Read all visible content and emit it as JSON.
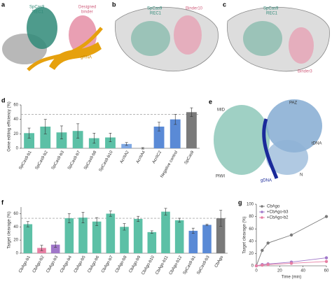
{
  "panel_labels": [
    "a",
    "b",
    "c",
    "d",
    "e",
    "f",
    "g"
  ],
  "structures": {
    "a": {
      "protein": [
        "SpCas9",
        "REC1"
      ],
      "binder": [
        "Designed",
        "binder"
      ],
      "rna": "gRNA"
    },
    "b": {
      "protein": [
        "SpCas9",
        "REC1"
      ],
      "binder": "Binder10"
    },
    "c": {
      "protein": [
        "SpCas9",
        "REC1"
      ],
      "binder": "Binder3"
    },
    "e": {
      "domains": [
        "MID",
        "PAZ",
        "tDNA",
        "PIWI",
        "gDNA",
        "N"
      ]
    }
  },
  "chart_data": [
    {
      "type": "bar",
      "y_label": "Gene editing efficiency (%)",
      "categories": [
        "SpCas9-b1",
        "SpCas9-b2",
        "SpCas9-b3",
        "SpCas9-b7",
        "SpCas9-b8",
        "SpCas9-b10",
        "AcrIIA2",
        "AcrIIA4",
        "AcrIIC2",
        "Negative control",
        "SpCas9"
      ],
      "values": [
        21,
        30,
        22,
        24,
        14,
        15,
        6,
        0,
        30,
        40,
        50
      ],
      "errors": [
        7,
        10,
        9,
        10,
        7,
        6,
        2,
        1,
        6,
        7,
        6
      ],
      "colors": [
        "#5cc0a6",
        "#5cc0a6",
        "#5cc0a6",
        "#5cc0a6",
        "#5cc0a6",
        "#5cc0a6",
        "#7fa8e3",
        "#7fa8e3",
        "#5a8ad6",
        "#5a8ad6",
        "#7a7a7a"
      ],
      "reference_line": 47,
      "ylim": [
        0,
        60
      ],
      "yticks": [
        0,
        20,
        40,
        60
      ]
    },
    {
      "type": "bar",
      "y_label": "Target cleavage (%)",
      "categories": [
        "CbAgo-b1",
        "CbAgo-b2",
        "CbAgo-b3",
        "CbAgo-b4",
        "CbAgo-b5",
        "CbAgo-b6",
        "CbAgo-b7",
        "CbAgo-b8",
        "CbAgo-b9",
        "CbAgo-b10",
        "CbAgo-b11",
        "CbAgo-b12",
        "SpCas9-b1",
        "SpCas9-b3",
        "CbAgo"
      ],
      "values": [
        44,
        8,
        13,
        53,
        54,
        48,
        60,
        40,
        52,
        32,
        63,
        50,
        34,
        43,
        53
      ],
      "errors": [
        4,
        4,
        4,
        7,
        8,
        6,
        4,
        5,
        4,
        2,
        5,
        3,
        4,
        1,
        12
      ],
      "colors": [
        "#5cc0a6",
        "#e77fa3",
        "#a077c9",
        "#5cc0a6",
        "#5cc0a6",
        "#5cc0a6",
        "#5cc0a6",
        "#5cc0a6",
        "#5cc0a6",
        "#5cc0a6",
        "#5cc0a6",
        "#5cc0a6",
        "#5a8ad6",
        "#5a8ad6",
        "#7a7a7a"
      ],
      "reference_line": 53,
      "ylim": [
        0,
        70
      ],
      "yticks": [
        0,
        20,
        40,
        60
      ]
    },
    {
      "type": "line",
      "x_label": "Time (min)",
      "y_label": "Target cleavage (%)",
      "x": [
        0,
        5,
        10,
        30,
        60
      ],
      "series": [
        {
          "name": "CbAgo",
          "color": "#7a7a7a",
          "values": [
            0,
            25,
            37,
            50,
            80
          ]
        },
        {
          "name": "+CbAgo-b3",
          "color": "#a077c9",
          "values": [
            0,
            2,
            3,
            6,
            13
          ]
        },
        {
          "name": "+CbAgo-b2",
          "color": "#e77fa3",
          "values": [
            0,
            1,
            2,
            4,
            7
          ]
        }
      ],
      "xlim": [
        0,
        60
      ],
      "xticks": [
        0,
        20,
        40,
        60
      ],
      "ylim": [
        0,
        100
      ],
      "yticks": [
        0,
        20,
        40,
        60,
        80,
        100
      ]
    }
  ]
}
